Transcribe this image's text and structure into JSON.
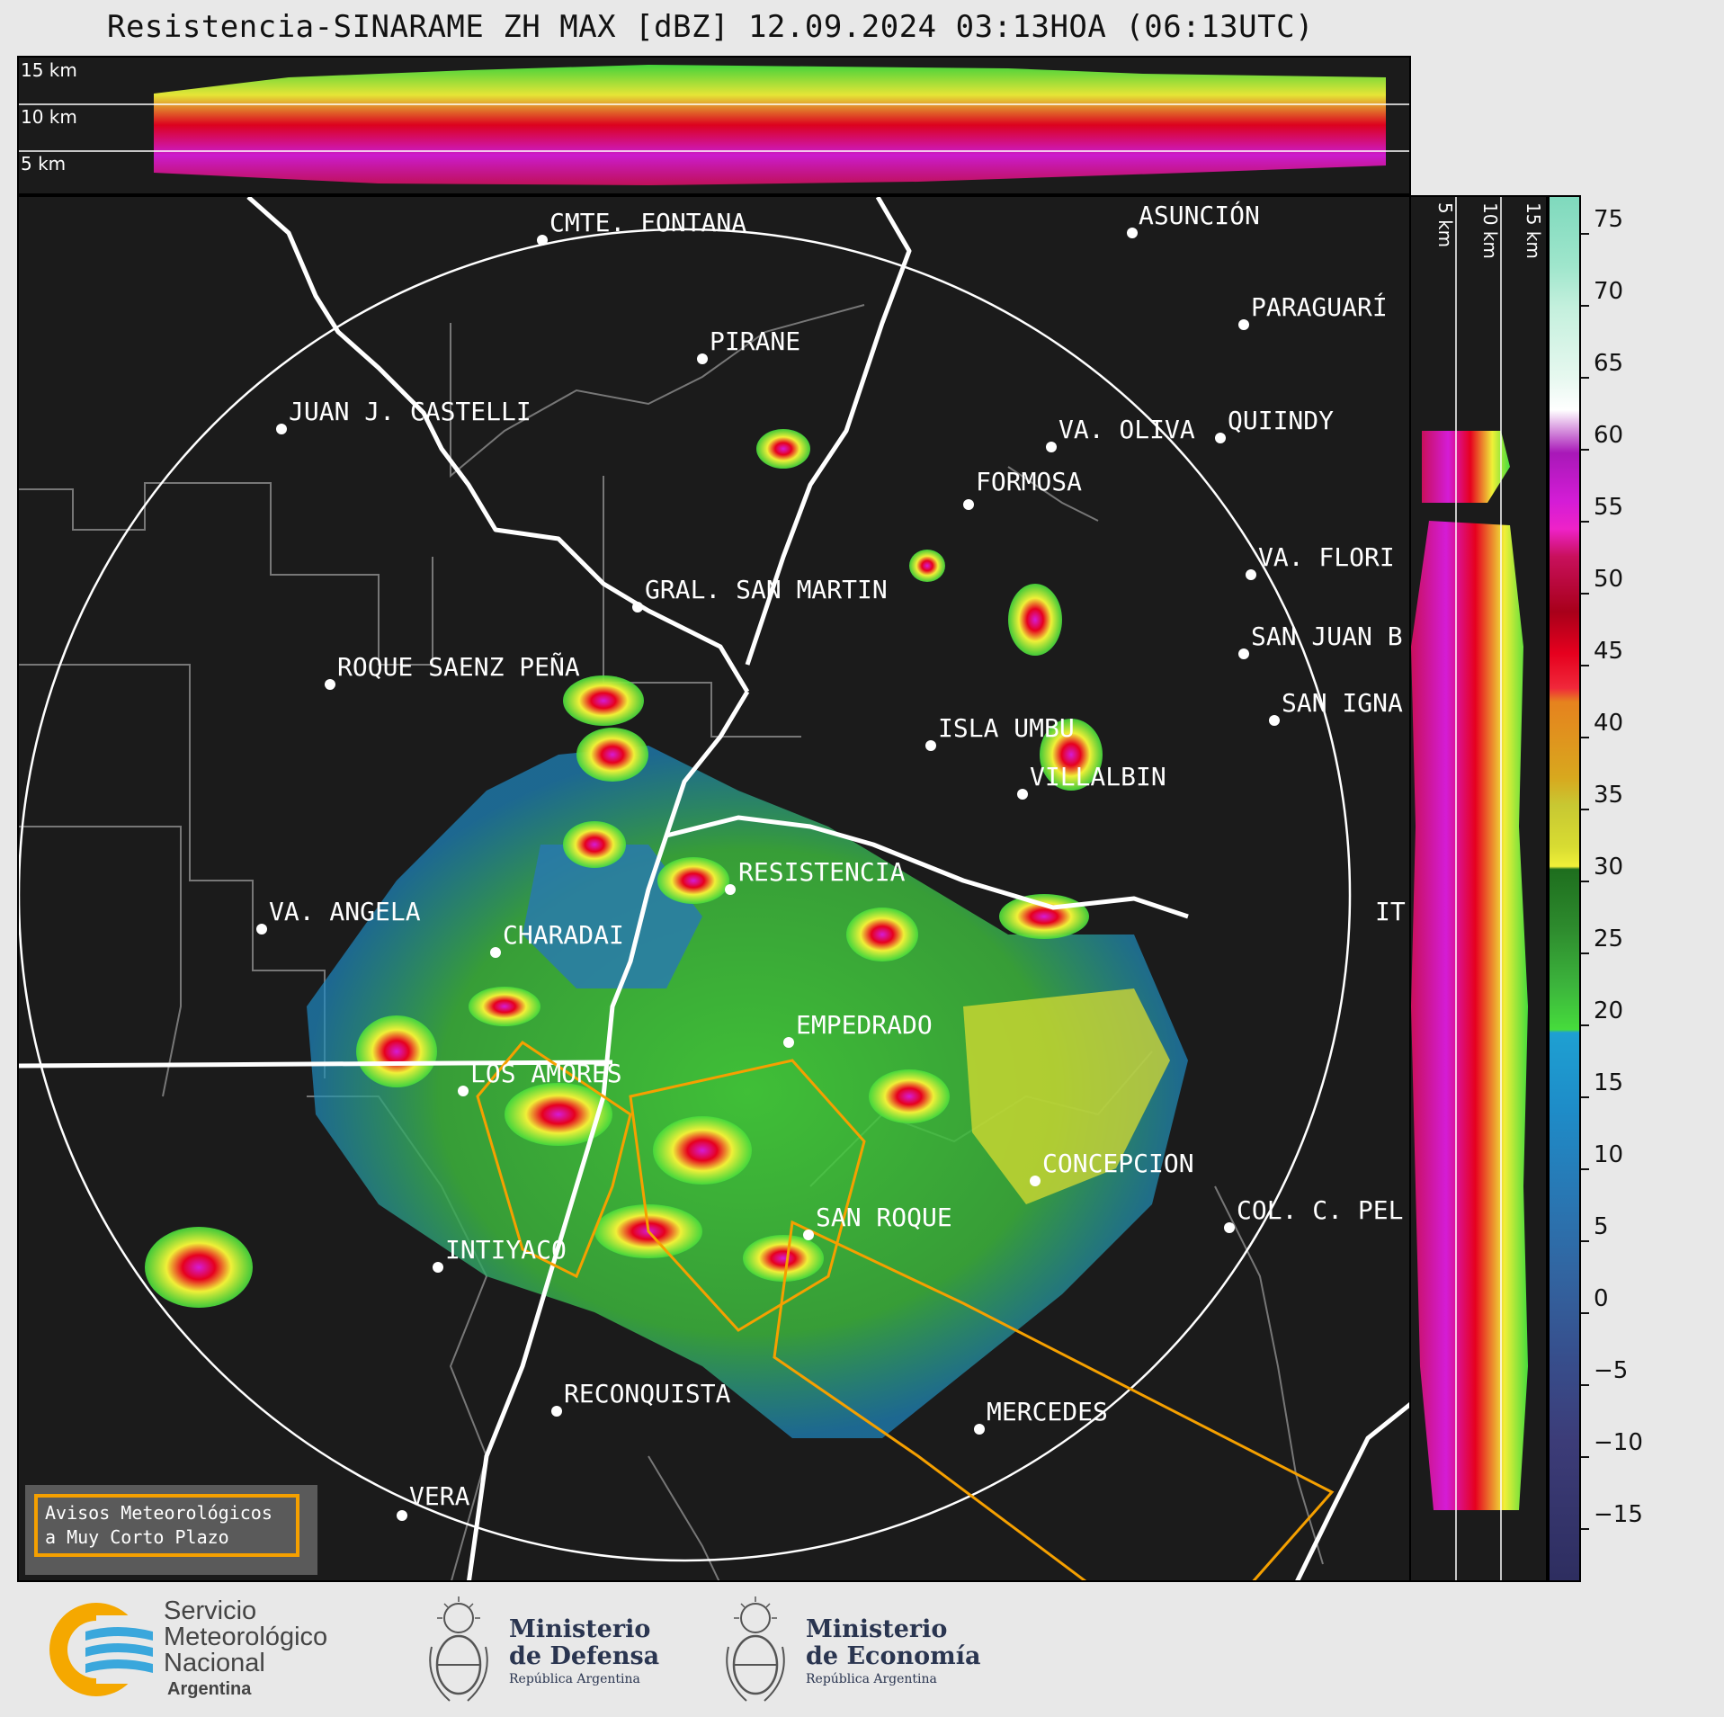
{
  "header": {
    "title": "Resistencia-SINARAME ZH MAX [dBZ] 12.09.2024 03:13HOA (06:13UTC)"
  },
  "top_panel": {
    "height_labels": [
      "15 km",
      "10 km",
      "5 km"
    ]
  },
  "side_panel": {
    "height_labels": [
      "5 km",
      "10 km",
      "15 km"
    ]
  },
  "colorbar": {
    "ticks": [
      "75",
      "70",
      "65",
      "60",
      "55",
      "50",
      "45",
      "40",
      "35",
      "30",
      "25",
      "20",
      "15",
      "10",
      "5",
      "0",
      "−5",
      "−10",
      "−15"
    ]
  },
  "map": {
    "cities": [
      "CMTE. FONTANA",
      "ASUNCIÓN",
      "PIRANE",
      "PARAGUARÍ",
      "JUAN J. CASTELLI",
      "VA. OLIVA",
      "QUIINDY",
      "FORMOSA",
      "VA. FLORI",
      "GRAL. SAN MARTIN",
      "SAN JUAN B",
      "ROQUE SAENZ PEÑA",
      "SAN IGNA",
      "ISLA UMBU",
      "VILLALBIN",
      "RESISTENCIA",
      "VA. ANGELA",
      "CHARADAI",
      "IT",
      "EMPEDRADO",
      "LOS AMORES",
      "CONCEPCION",
      "SAN ROQUE",
      "COL. C. PEL",
      "INTIYACO",
      "RECONQUISTA",
      "MERCEDES",
      "VERA"
    ]
  },
  "avisos": {
    "line1": "Avisos Meteorológicos",
    "line2": "a Muy Corto Plazo"
  },
  "footer": {
    "smn": {
      "line1": "Servicio",
      "line2": "Meteorológico",
      "line3": "Nacional",
      "line4": "Argentina"
    },
    "defensa": {
      "line1": "Ministerio",
      "line2": "de Defensa",
      "line3": "República Argentina"
    },
    "economia": {
      "line1": "Ministerio",
      "line2": "de Economía",
      "line3": "República Argentina"
    }
  }
}
